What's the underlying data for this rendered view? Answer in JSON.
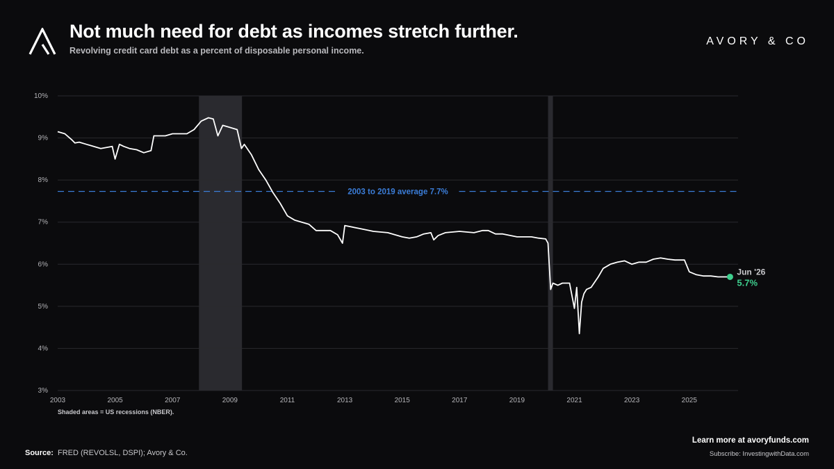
{
  "header": {
    "title": "Not much need for debt as incomes stretch further.",
    "subtitle": "Revolving credit card debt as a percent of disposable personal income.",
    "brand": "AVORY & CO"
  },
  "footer": {
    "note": "Shaded areas = US recessions (NBER).",
    "source_label": "Source:",
    "source_text": "FRED (REVOLSL, DSPI); Avory & Co.",
    "cta": "Learn more at avoryfunds.com",
    "subscribe": "Subscribe: InvestingwithData.com"
  },
  "colors": {
    "background": "#0b0b0d",
    "line": "#ffffff",
    "average": "#3b7dd8",
    "endpoint": "#3ecf8e",
    "recession": "#2a2a2f",
    "grid": "#2a2a2e"
  },
  "chart_data": {
    "type": "line",
    "y_unit": "%",
    "ylim": [
      3,
      10
    ],
    "xlim": [
      2003.0,
      2026.7
    ],
    "yticks": [
      "3%",
      "4%",
      "5%",
      "6%",
      "7%",
      "8%",
      "9%",
      "10%"
    ],
    "xticks": [
      "2003",
      "2005",
      "2007",
      "2009",
      "2011",
      "2013",
      "2015",
      "2017",
      "2019",
      "2021",
      "2023",
      "2025"
    ],
    "grid": "horizontal",
    "recessions": [
      [
        2007.92,
        2009.42
      ],
      [
        2020.08,
        2020.25
      ]
    ],
    "average": {
      "value": 7.73,
      "label": "2003 to 2019 average",
      "value_label": "7.7%"
    },
    "endpoint": {
      "label": "Jun '26",
      "value_label": "5.7%"
    },
    "series": [
      {
        "x": [
          2003.0,
          2003.25,
          2003.5,
          2003.6,
          2003.75,
          2004.0,
          2004.5,
          2004.75,
          2004.9,
          2005.0,
          2005.15,
          2005.3,
          2005.5,
          2005.75,
          2006.0,
          2006.25,
          2006.35,
          2006.5,
          2006.75,
          2007.0,
          2007.25,
          2007.5,
          2007.75,
          2008.0,
          2008.25,
          2008.42,
          2008.58,
          2008.75,
          2009.0,
          2009.25,
          2009.4,
          2009.5,
          2009.75,
          2010.0,
          2010.25,
          2010.5,
          2010.75,
          2011.0,
          2011.25,
          2011.5,
          2011.75,
          2012.0,
          2012.25,
          2012.5,
          2012.75,
          2012.92,
          2013.0,
          2013.5,
          2014.0,
          2014.5,
          2015.0,
          2015.25,
          2015.5,
          2015.75,
          2016.0,
          2016.1,
          2016.25,
          2016.5,
          2017.0,
          2017.5,
          2017.8,
          2018.0,
          2018.25,
          2018.5,
          2019.0,
          2019.5,
          2019.75,
          2020.0,
          2020.08,
          2020.17,
          2020.25,
          2020.42,
          2020.58,
          2020.83,
          2021.0,
          2021.08,
          2021.17,
          2021.25,
          2021.33,
          2021.42,
          2021.58,
          2021.83,
          2022.0,
          2022.25,
          2022.5,
          2022.75,
          2023.0,
          2023.25,
          2023.5,
          2023.75,
          2024.0,
          2024.25,
          2024.5,
          2024.83,
          2025.0,
          2025.25,
          2025.5,
          2025.75,
          2026.0,
          2026.25,
          2026.42
        ],
        "y": [
          9.15,
          9.1,
          8.95,
          8.88,
          8.9,
          8.85,
          8.75,
          8.78,
          8.8,
          8.5,
          8.85,
          8.8,
          8.75,
          8.72,
          8.65,
          8.7,
          9.05,
          9.05,
          9.05,
          9.1,
          9.1,
          9.1,
          9.2,
          9.4,
          9.48,
          9.45,
          9.05,
          9.3,
          9.25,
          9.2,
          8.75,
          8.85,
          8.6,
          8.25,
          8.0,
          7.7,
          7.45,
          7.15,
          7.05,
          7.0,
          6.95,
          6.8,
          6.8,
          6.8,
          6.7,
          6.5,
          6.92,
          6.85,
          6.78,
          6.75,
          6.65,
          6.62,
          6.65,
          6.72,
          6.75,
          6.58,
          6.68,
          6.75,
          6.78,
          6.75,
          6.8,
          6.8,
          6.72,
          6.72,
          6.65,
          6.65,
          6.62,
          6.6,
          6.5,
          5.4,
          5.55,
          5.5,
          5.55,
          5.55,
          4.95,
          5.45,
          4.35,
          5.1,
          5.3,
          5.4,
          5.45,
          5.7,
          5.9,
          6.0,
          6.05,
          6.08,
          6.0,
          6.05,
          6.05,
          6.12,
          6.15,
          6.12,
          6.1,
          6.1,
          5.82,
          5.75,
          5.72,
          5.72,
          5.7,
          5.7,
          5.7
        ]
      }
    ]
  }
}
